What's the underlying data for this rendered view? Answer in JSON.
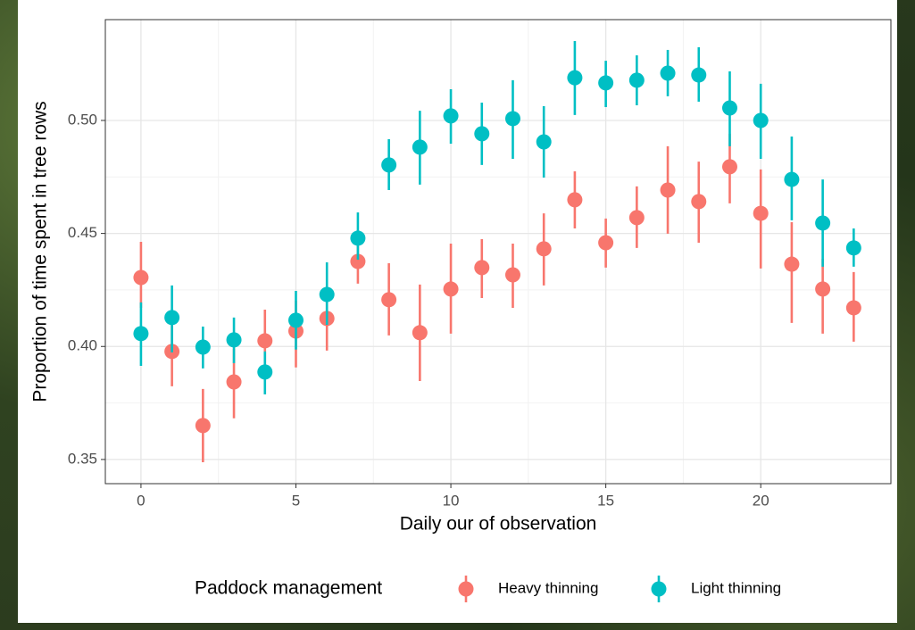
{
  "chart_data": {
    "type": "pointrange",
    "x_label": "Daily our of observation",
    "y_label": "Proportion of time spent in tree rows",
    "legend_title": "Paddock management",
    "x": [
      0,
      1,
      2,
      3,
      4,
      5,
      6,
      7,
      8,
      9,
      10,
      11,
      12,
      13,
      14,
      15,
      16,
      17,
      18,
      19,
      20,
      21,
      22,
      23
    ],
    "series": [
      {
        "name": "Heavy thinning",
        "color": "#f8766d",
        "values": [
          0.4305,
          0.3978,
          0.365,
          0.3843,
          0.4025,
          0.4068,
          0.4124,
          0.4376,
          0.4207,
          0.4061,
          0.4254,
          0.4349,
          0.4317,
          0.4432,
          0.4649,
          0.4459,
          0.457,
          0.4692,
          0.4641,
          0.4795,
          0.4589,
          0.4364,
          0.4254,
          0.4171
        ],
        "lower": [
          0.4171,
          0.3824,
          0.3488,
          0.3682,
          0.3879,
          0.3907,
          0.3982,
          0.4278,
          0.4049,
          0.3847,
          0.4057,
          0.4214,
          0.4171,
          0.427,
          0.4522,
          0.4349,
          0.4436,
          0.4499,
          0.4459,
          0.4633,
          0.4345,
          0.4104,
          0.4057,
          0.4021
        ],
        "upper": [
          0.4463,
          0.4112,
          0.3812,
          0.399,
          0.4163,
          0.4203,
          0.4266,
          0.4455,
          0.4368,
          0.4274,
          0.4455,
          0.4475,
          0.4455,
          0.4589,
          0.4775,
          0.4566,
          0.4708,
          0.4886,
          0.4818,
          0.4941,
          0.4783,
          0.455,
          0.4388,
          0.4329
        ]
      },
      {
        "name": "Light thinning",
        "color": "#00bfc4",
        "values": [
          0.4057,
          0.4128,
          0.3997,
          0.4029,
          0.3887,
          0.4116,
          0.423,
          0.4479,
          0.4803,
          0.4882,
          0.502,
          0.4941,
          0.5008,
          0.4905,
          0.5189,
          0.5166,
          0.5178,
          0.5209,
          0.5201,
          0.5055,
          0.5,
          0.4739,
          0.4546,
          0.4436
        ],
        "lower": [
          0.3914,
          0.3974,
          0.3903,
          0.3926,
          0.3788,
          0.3986,
          0.4096,
          0.4384,
          0.4692,
          0.4716,
          0.4897,
          0.4803,
          0.483,
          0.4747,
          0.5024,
          0.5059,
          0.5067,
          0.5107,
          0.5083,
          0.4886,
          0.483,
          0.4558,
          0.4353,
          0.4353
        ],
        "upper": [
          0.4195,
          0.427,
          0.4088,
          0.4128,
          0.3978,
          0.4246,
          0.4372,
          0.4593,
          0.4917,
          0.5043,
          0.5138,
          0.5079,
          0.5178,
          0.5063,
          0.5351,
          0.5264,
          0.5288,
          0.5312,
          0.5324,
          0.5217,
          0.5162,
          0.4929,
          0.4739,
          0.4522
        ]
      }
    ],
    "xlim": [
      -1.15,
      24.2
    ],
    "xticks": [
      0,
      5,
      10,
      15,
      20
    ],
    "ylim": [
      0.3393,
      0.5446
    ],
    "yticks": [
      0.35,
      {
        "value": 0.4,
        "label": "0.40"
      },
      0.45,
      {
        "value": 0.5,
        "label": "0.50"
      }
    ],
    "grid": true,
    "legend_position": "bottom"
  }
}
